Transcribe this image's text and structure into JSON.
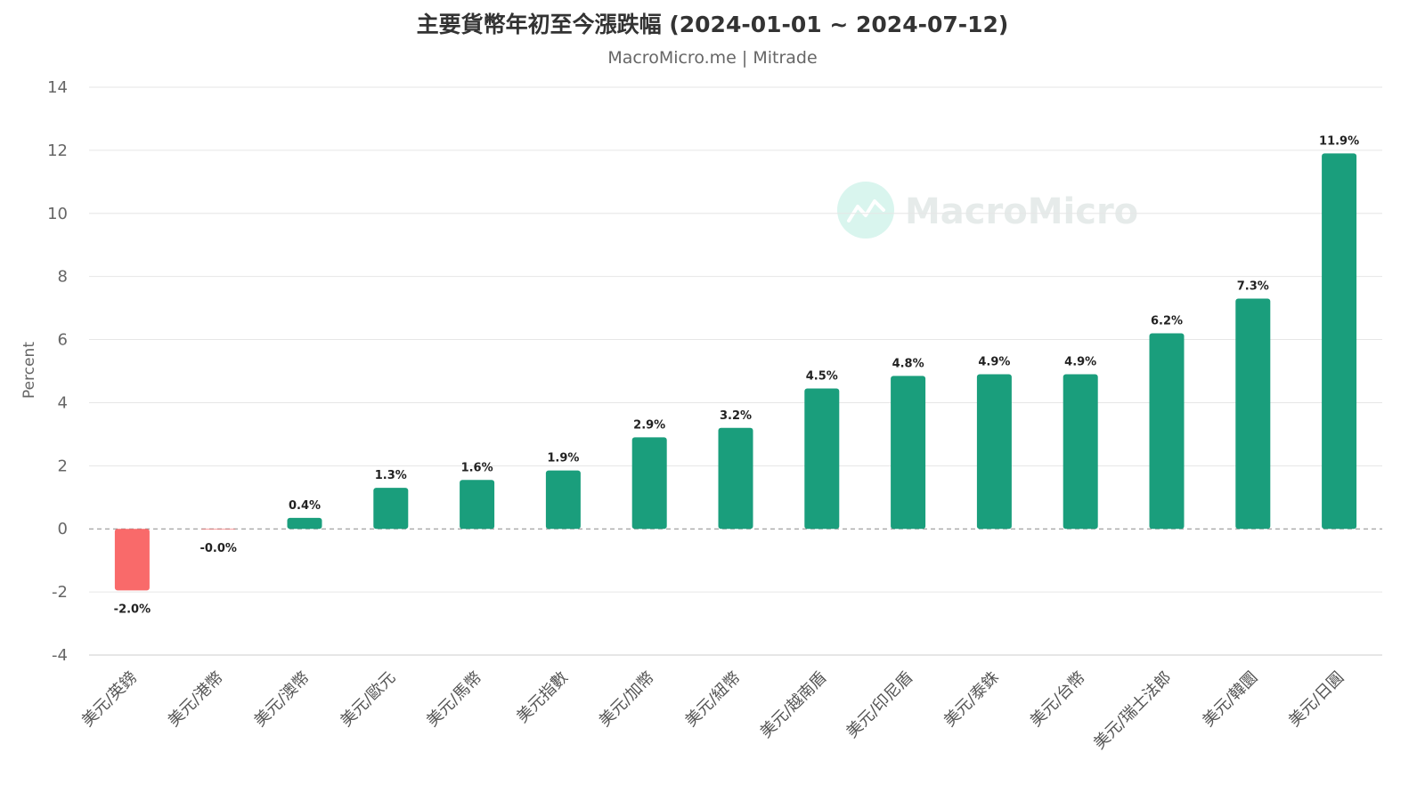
{
  "chart_data": {
    "type": "bar",
    "title": "主要貨幣年初至今漲跌幅 (2024-01-01 ~ 2024-07-12)",
    "subtitle": "MacroMicro.me | Mitrade",
    "watermark": "MacroMicro",
    "xlabel": "",
    "ylabel": "Percent",
    "ylim": [
      -4,
      14
    ],
    "yticks": [
      "14",
      "12",
      "10",
      "8",
      "6",
      "4",
      "2",
      "0",
      "-2",
      "-4"
    ],
    "grid": true,
    "legend": "none",
    "categories": [
      "美元/英鎊",
      "美元/港幣",
      "美元/澳幣",
      "美元/歐元",
      "美元/馬幣",
      "美元指數",
      "美元/加幣",
      "美元/紐幣",
      "美元/越南盾",
      "美元/印尼盾",
      "美元/泰銖",
      "美元/台幣",
      "美元/瑞士法郎",
      "美元/韓圜",
      "美元/日圓"
    ],
    "values": [
      -1.95,
      -0.02,
      0.35,
      1.3,
      1.55,
      1.85,
      2.9,
      3.2,
      4.45,
      4.85,
      4.9,
      4.9,
      6.2,
      7.3,
      11.9
    ],
    "labels": [
      "-2.0%",
      "-0.0%",
      "0.4%",
      "1.3%",
      "1.6%",
      "1.9%",
      "2.9%",
      "3.2%",
      "4.5%",
      "4.8%",
      "4.9%",
      "4.9%",
      "6.2%",
      "7.3%",
      "11.9%"
    ],
    "colors": {
      "positive": "#1a9e7c",
      "negative": "#f96a6a",
      "grid": "#e6e6e6",
      "zero_line": "#8a8a8a",
      "watermark": "#d9f5ee"
    }
  }
}
